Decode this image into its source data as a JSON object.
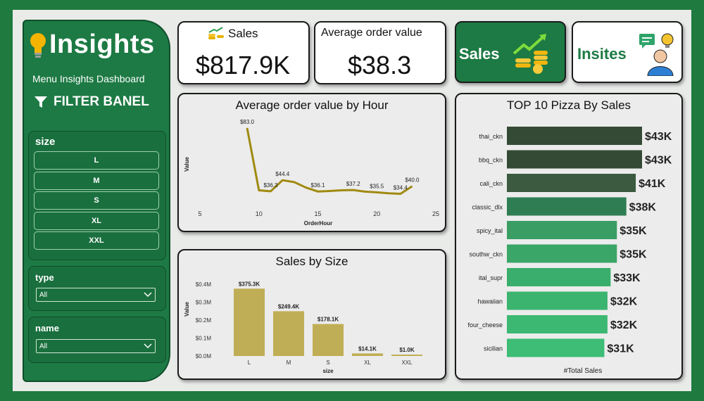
{
  "sidebar": {
    "title": "Insights",
    "subtitle": "Menu Insights Dashboard",
    "filter_heading": "FILTER BANEL",
    "size_label": "size",
    "size_options": [
      "L",
      "M",
      "S",
      "XL",
      "XXL"
    ],
    "type_label": "type",
    "type_value": "All",
    "name_label": "name",
    "name_value": "All"
  },
  "kpis": {
    "sales_label": "Sales",
    "sales_value": "$817.9K",
    "aov_label": "Average order value",
    "aov_value": "$38.3"
  },
  "tiles": {
    "sales_tile": "Sales",
    "insites_tile": "Insites"
  },
  "colors": {
    "brand_green": "#1d7a44",
    "line_color": "#a08a10",
    "bar_gold": "#bfae55",
    "top10_shades": [
      "#354a35",
      "#354a35",
      "#3c5a3f",
      "#2f7e53",
      "#3a9e64",
      "#3aa667",
      "#3aae6c",
      "#3bb46f",
      "#3cb872",
      "#3dbd76"
    ]
  },
  "chart_data": [
    {
      "type": "line",
      "title": "Average order value by Hour",
      "xlabel": "OrderHour",
      "ylabel": "Value",
      "xlim": [
        5,
        25
      ],
      "xticks": [
        "5",
        "10",
        "15",
        "20",
        "25"
      ],
      "x": [
        9,
        10,
        11,
        12,
        13,
        14,
        15,
        16,
        17,
        18,
        19,
        20,
        21,
        22,
        23
      ],
      "values": [
        83.0,
        37.0,
        36.3,
        44.4,
        43.0,
        39.0,
        36.1,
        36.5,
        37.0,
        37.2,
        36.0,
        35.5,
        34.8,
        34.4,
        40.0
      ],
      "labels": [
        {
          "x": 9,
          "text": "$83.0"
        },
        {
          "x": 11,
          "text": "$36.3"
        },
        {
          "x": 12,
          "text": "$44.4"
        },
        {
          "x": 15,
          "text": "$36.1"
        },
        {
          "x": 18,
          "text": "$37.2"
        },
        {
          "x": 20,
          "text": "$35.5"
        },
        {
          "x": 22,
          "text": "$34.4"
        },
        {
          "x": 23,
          "text": "$40.0"
        }
      ]
    },
    {
      "type": "bar",
      "title": "Sales by Size",
      "xlabel": "size",
      "ylabel": "Value",
      "categories": [
        "L",
        "M",
        "S",
        "XL",
        "XXL"
      ],
      "values": [
        375.3,
        249.4,
        178.1,
        14.1,
        1.0
      ],
      "data_labels": [
        "$375.3K",
        "$249.4K",
        "$178.1K",
        "$14.1K",
        "$1.0K"
      ],
      "yticks": [
        "$0.0M",
        "$0.1M",
        "$0.2M",
        "$0.3M",
        "$0.4M"
      ],
      "ylim": [
        0,
        400
      ]
    },
    {
      "type": "bar",
      "orientation": "horizontal",
      "title": "TOP 10 Pizza By Sales",
      "xlabel": "#Total Sales",
      "categories": [
        "thai_ckn",
        "bbq_ckn",
        "cali_ckn",
        "classic_dlx",
        "spicy_ital",
        "southw_ckn",
        "ital_supr",
        "hawaiian",
        "four_cheese",
        "sicilian"
      ],
      "values": [
        43,
        43,
        41,
        38,
        35,
        35,
        33,
        32,
        32,
        31
      ],
      "data_labels": [
        "$43K",
        "$43K",
        "$41K",
        "$38K",
        "$35K",
        "$35K",
        "$33K",
        "$32K",
        "$32K",
        "$31K"
      ]
    }
  ]
}
